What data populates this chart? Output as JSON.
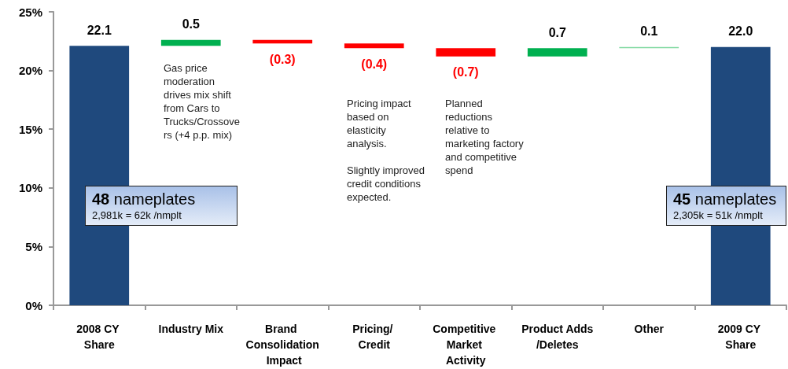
{
  "chart_data": {
    "type": "bar",
    "categories": [
      "2008 CY Share",
      "Industry Mix",
      "Brand Consolidation Impact",
      "Pricing/ Credit",
      "Competitive Market Activity",
      "Product Adds/Deletes",
      "Other",
      "2009 CY Share"
    ],
    "values": [
      22.1,
      0.5,
      -0.3,
      -0.4,
      -0.7,
      0.7,
      0.1,
      22.0
    ],
    "base": [
      0,
      22.1,
      22.6,
      22.3,
      21.9,
      21.2,
      21.9,
      0
    ],
    "colors": [
      "#1f497d",
      "#00b050",
      "#ff0000",
      "#ff0000",
      "#ff0000",
      "#00b050",
      "#7fd8a0",
      "#1f497d"
    ],
    "value_labels": [
      "22.1",
      "0.5",
      "(0.3)",
      "(0.4)",
      "(0.7)",
      "0.7",
      "0.1",
      "22.0"
    ],
    "ylim": [
      0,
      25
    ],
    "yticks": [
      {
        "value": 0,
        "label": "0%"
      },
      {
        "value": 5,
        "label": "5%"
      },
      {
        "value": 10,
        "label": "10%"
      },
      {
        "value": 15,
        "label": "15%"
      },
      {
        "value": 20,
        "label": "20%"
      },
      {
        "value": 25,
        "label": "25%"
      }
    ],
    "grid": false,
    "annotations": [
      "Gas price moderation drives mix shift from Cars to Trucks/Crossovers (+4 p.p. mix)",
      "Pricing impact based on elasticity analysis.\n\nSlightly improved credit conditions expected.",
      "Planned reductions relative to marketing factory and competitive spend",
      "48 nameplates\n2,981k = 62k /nmplt",
      "45 nameplates\n2,305k = 51k /nmplt"
    ]
  }
}
